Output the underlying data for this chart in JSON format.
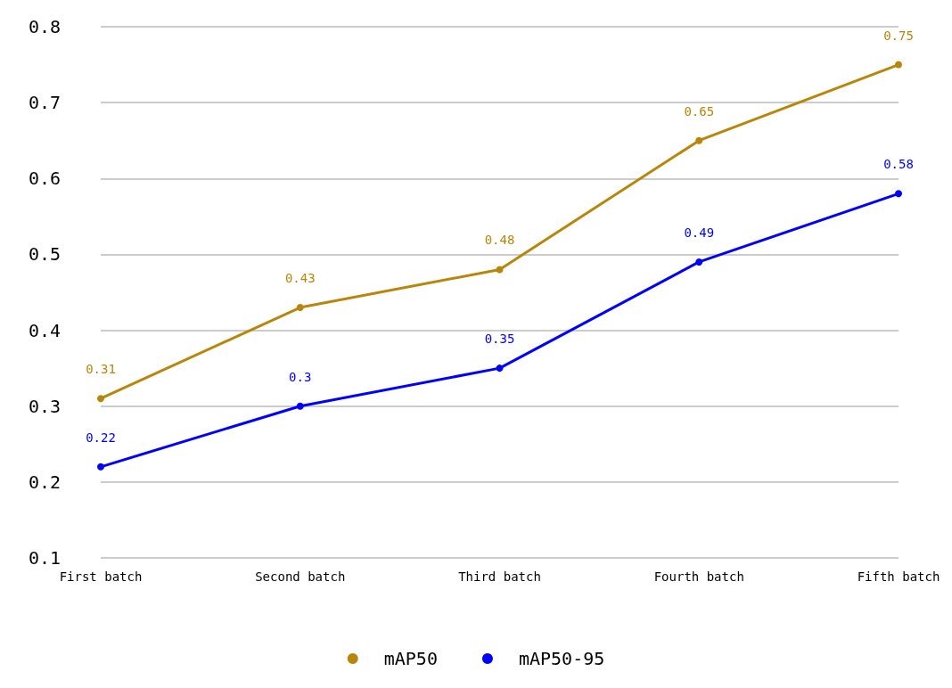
{
  "chart_data": {
    "type": "line",
    "categories": [
      "First batch",
      "Second batch",
      "Third batch",
      "Fourth batch",
      "Fifth batch"
    ],
    "series": [
      {
        "name": "mAP50",
        "color": "#b8860b",
        "values": [
          0.31,
          0.43,
          0.48,
          0.65,
          0.75
        ]
      },
      {
        "name": "mAP50-95",
        "color": "#0000ff",
        "values": [
          0.22,
          0.3,
          0.35,
          0.49,
          0.58
        ]
      }
    ],
    "ylim": [
      0.1,
      0.8
    ],
    "yticks": [
      0.1,
      0.2,
      0.3,
      0.4,
      0.5,
      0.6,
      0.7,
      0.8
    ],
    "grid": "y",
    "legend": "bottom",
    "marker": "circle",
    "line_style": "solid",
    "data_labels": true
  }
}
